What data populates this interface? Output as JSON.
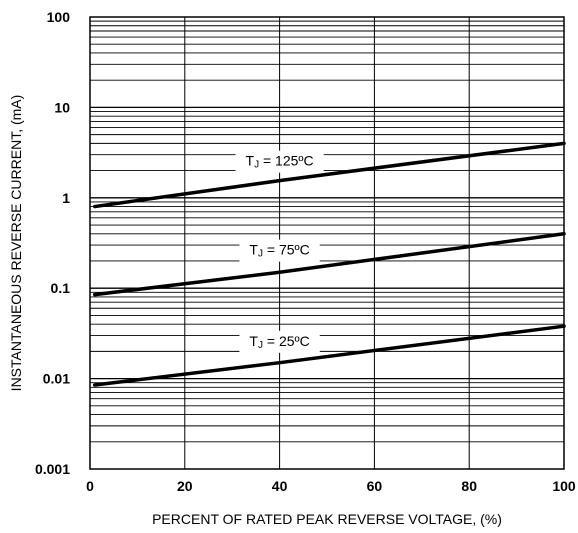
{
  "chart_data": {
    "type": "line",
    "title": "",
    "xlabel": "PERCENT OF RATED PEAK REVERSE VOLTAGE, (%)",
    "ylabel": "INSTANTANEOUS  REVERSE CURRENT, (mA)",
    "x_scale": "linear",
    "y_scale": "log",
    "xlim": [
      0,
      100
    ],
    "ylim": [
      0.001,
      100
    ],
    "x_ticks": [
      0,
      20,
      40,
      60,
      80,
      100
    ],
    "x_tick_labels": [
      "0",
      "20",
      "40",
      "60",
      "80",
      "100"
    ],
    "y_ticks": [
      0.001,
      0.01,
      0.1,
      1,
      10,
      100
    ],
    "y_tick_labels": [
      "0.001",
      "0.01",
      "0.1",
      "1",
      "10",
      "100"
    ],
    "grid": true,
    "series": [
      {
        "name": "TJ = 125ºC",
        "label_main": "T",
        "label_sub": "J",
        "label_rest": " = 125ºC",
        "label_x": 40,
        "x": [
          1,
          40,
          100
        ],
        "y": [
          0.8,
          1.55,
          4.0
        ]
      },
      {
        "name": "TJ = 75ºC",
        "label_main": "T",
        "label_sub": "J",
        "label_rest": " = 75ºC",
        "label_x": 40,
        "x": [
          1,
          40,
          100
        ],
        "y": [
          0.085,
          0.15,
          0.4
        ]
      },
      {
        "name": "TJ = 25ºC",
        "label_main": "T",
        "label_sub": "J",
        "label_rest": " = 25ºC",
        "label_x": 40,
        "x": [
          1,
          40,
          100
        ],
        "y": [
          0.0085,
          0.015,
          0.038
        ]
      }
    ]
  }
}
